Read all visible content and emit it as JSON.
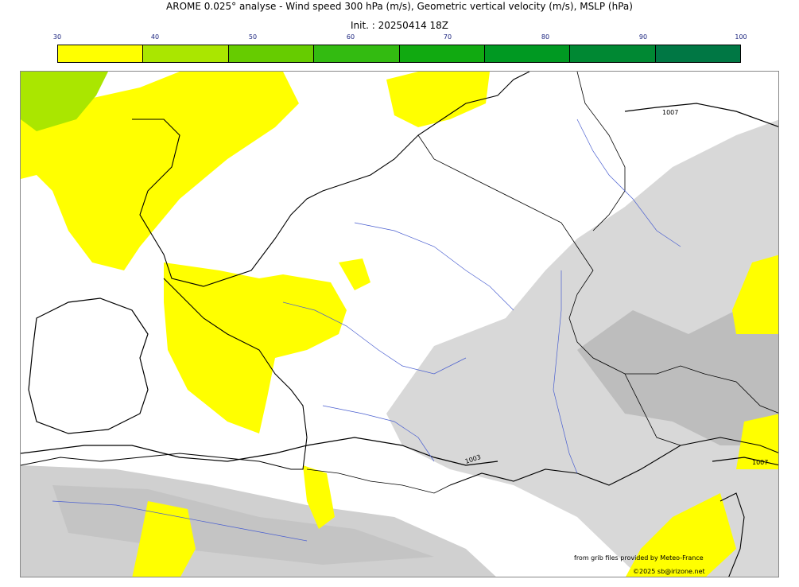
{
  "title": "AROME 0.025° analyse - Wind speed 300 hPa (m/s), Geometric vertical velocity (m/s), MSLP (hPa)",
  "subtitle": "Init. : 20250414 18Z",
  "colorbar": {
    "ticks": [
      "30",
      "40",
      "50",
      "60",
      "70",
      "80",
      "90",
      "100"
    ],
    "colors": [
      "#ffff00",
      "#aae600",
      "#66cc00",
      "#33bb11",
      "#11aa11",
      "#009922",
      "#008833",
      "#007744"
    ]
  },
  "isobar_labels": [
    "1007",
    "1003",
    "1007"
  ],
  "credits": {
    "line1": "from grib files provided by Meteo-France",
    "line2": "©2025 sb@irizone.net"
  }
}
